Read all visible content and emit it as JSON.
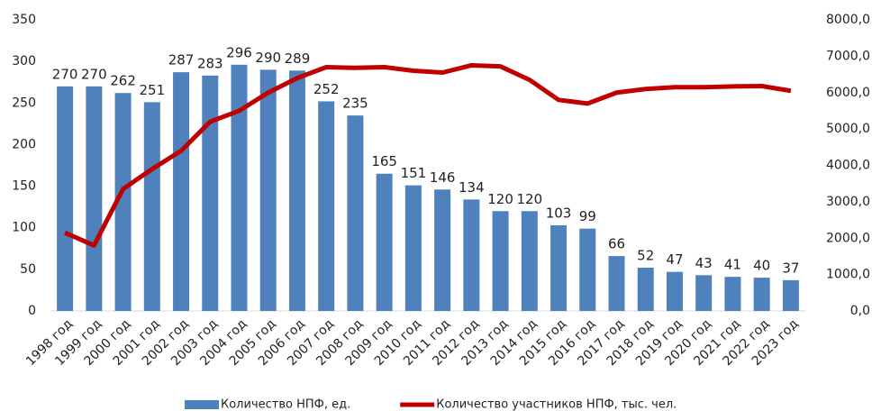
{
  "chart_data": {
    "type": "bar_line",
    "categories": [
      "1998 год",
      "1999 год",
      "2000 год",
      "2001 год",
      "2002 год",
      "2003 год",
      "2004 год",
      "2005 год",
      "2006 год",
      "2007 год",
      "2008 год",
      "2009 год",
      "2010 год",
      "2011 год",
      "2012 год",
      "2013 год",
      "2014 год",
      "2015 год",
      "2016 год",
      "2017 год",
      "2018 год",
      "2019 год",
      "2020 год",
      "2021 год",
      "2022 год",
      "2023 год"
    ],
    "series": [
      {
        "name": "Количество НПФ, ед.",
        "type": "bar",
        "color": "#4f81bd",
        "values": [
          270,
          270,
          262,
          251,
          287,
          283,
          296,
          290,
          289,
          252,
          235,
          165,
          151,
          146,
          134,
          120,
          120,
          103,
          99,
          66,
          52,
          47,
          43,
          41,
          40,
          37
        ]
      },
      {
        "name": "Количество участников НПФ, тыс. чел.",
        "type": "line",
        "color": "#c00000",
        "axis": "y2",
        "values": [
          2150,
          1800,
          3350,
          3900,
          4400,
          5200,
          5500,
          6000,
          6400,
          6700,
          6680,
          6700,
          6600,
          6550,
          6750,
          6720,
          6350,
          5800,
          5700,
          6000,
          6100,
          6150,
          6150,
          6170,
          6180,
          6050
        ]
      }
    ],
    "ylim": [
      0,
      350
    ],
    "yticks": [
      0,
      50,
      100,
      150,
      200,
      250,
      300,
      350
    ],
    "y2lim": [
      0,
      8000
    ],
    "y2ticks": [
      {
        "value": 0,
        "label": "0,0"
      },
      {
        "value": 1000,
        "label": "1000,0"
      },
      {
        "value": 2000,
        "label": "2000,0"
      },
      {
        "value": 3000,
        "label": "3000,0"
      },
      {
        "value": 4000,
        "label": "4000,0"
      },
      {
        "value": 5000,
        "label": "5000,0"
      },
      {
        "value": 6000,
        "label": "6000,0"
      },
      {
        "value": 7000,
        "label": "7000,0"
      },
      {
        "value": 8000,
        "label": "8000,0"
      }
    ],
    "grid": false,
    "legend": "bottom"
  }
}
